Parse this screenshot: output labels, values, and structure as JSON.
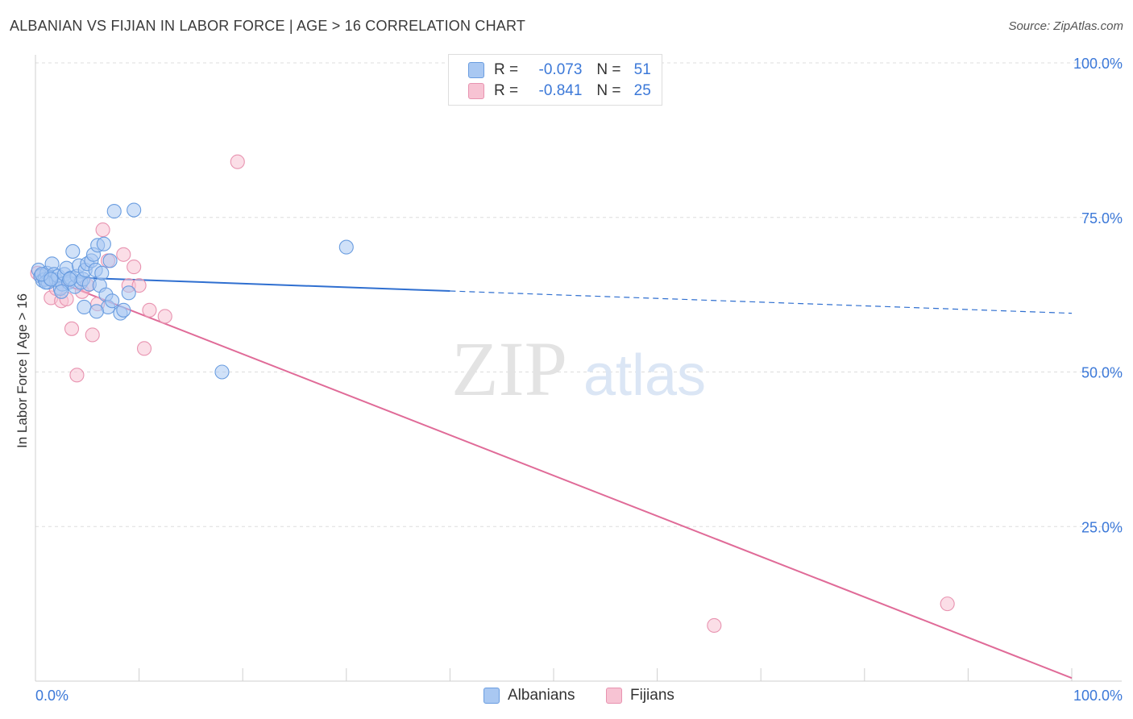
{
  "header": {
    "title": "ALBANIAN VS FIJIAN IN LABOR FORCE | AGE > 16 CORRELATION CHART",
    "source": "Source: ZipAtlas.com"
  },
  "watermark": {
    "zip": "ZIP",
    "atlas": "atlas"
  },
  "legend_top": {
    "rows": [
      {
        "r_label": "R =",
        "r_value": "-0.073",
        "n_label": "N =",
        "n_value": "51"
      },
      {
        "r_label": "R =",
        "r_value": "-0.841",
        "n_label": "N =",
        "n_value": "25"
      }
    ]
  },
  "legend_bottom": {
    "albanians": "Albanians",
    "fijians": "Fijians"
  },
  "colors": {
    "albanian_fill": "#a9c8f2",
    "albanian_stroke": "#6a9de0",
    "albanian_line": "#2f6fd0",
    "fijian_fill": "#f7c3d3",
    "fijian_stroke": "#e893b0",
    "fijian_line": "#e06b98",
    "grid": "#dddddd",
    "axis_label": "#3b78d8"
  },
  "chart_data": {
    "type": "scatter",
    "title": "ALBANIAN VS FIJIAN IN LABOR FORCE | AGE > 16 CORRELATION CHART",
    "xlabel": "",
    "ylabel": "In Labor Force | Age > 16",
    "xlim": [
      0,
      100
    ],
    "ylim": [
      0,
      100
    ],
    "x_ticks": [
      "0.0%",
      "100.0%"
    ],
    "y_ticks": [
      "100.0%",
      "75.0%",
      "50.0%",
      "25.0%"
    ],
    "y_tick_values": [
      100,
      75,
      50,
      25
    ],
    "grid": true,
    "legend_placement": "top-center",
    "series": [
      {
        "name": "Albanians",
        "r": -0.073,
        "n": 51,
        "points": [
          [
            0.3,
            66.5
          ],
          [
            0.5,
            65.5
          ],
          [
            0.7,
            64.8
          ],
          [
            0.9,
            65.0
          ],
          [
            1.1,
            66.0
          ],
          [
            1.2,
            64.5
          ],
          [
            1.4,
            65.2
          ],
          [
            1.6,
            67.5
          ],
          [
            1.8,
            65.8
          ],
          [
            2.0,
            64.9
          ],
          [
            2.2,
            65.5
          ],
          [
            2.4,
            63.5
          ],
          [
            2.6,
            64.2
          ],
          [
            2.8,
            65.8
          ],
          [
            3.0,
            66.8
          ],
          [
            3.2,
            64.5
          ],
          [
            3.4,
            65.2
          ],
          [
            3.6,
            69.5
          ],
          [
            3.8,
            63.8
          ],
          [
            4.0,
            65.5
          ],
          [
            4.2,
            67.2
          ],
          [
            4.4,
            64.5
          ],
          [
            4.6,
            65.0
          ],
          [
            4.8,
            66.5
          ],
          [
            5.0,
            67.5
          ],
          [
            5.2,
            64.2
          ],
          [
            5.4,
            68.0
          ],
          [
            5.6,
            69.0
          ],
          [
            5.8,
            66.5
          ],
          [
            6.0,
            70.5
          ],
          [
            6.2,
            64.0
          ],
          [
            6.4,
            66.0
          ],
          [
            6.6,
            70.7
          ],
          [
            6.8,
            62.5
          ],
          [
            7.0,
            60.5
          ],
          [
            7.2,
            68.0
          ],
          [
            7.4,
            61.5
          ],
          [
            7.6,
            76.0
          ],
          [
            8.2,
            59.5
          ],
          [
            8.5,
            60.0
          ],
          [
            9.0,
            62.8
          ],
          [
            9.5,
            76.2
          ],
          [
            4.7,
            60.5
          ],
          [
            5.9,
            59.8
          ],
          [
            3.3,
            65.0
          ],
          [
            2.5,
            63.0
          ],
          [
            1.0,
            64.5
          ],
          [
            0.6,
            65.8
          ],
          [
            30.0,
            70.2
          ],
          [
            18.0,
            50.0
          ],
          [
            1.5,
            65.0
          ]
        ],
        "trend": {
          "x_start": 0,
          "y_start": 65.5,
          "x_solid_end": 40,
          "y_solid_end": 63.1,
          "x_end": 100,
          "y_end": 59.5
        }
      },
      {
        "name": "Fijians",
        "r": -0.841,
        "n": 25,
        "points": [
          [
            0.2,
            66.0
          ],
          [
            0.5,
            65.5
          ],
          [
            1.0,
            65.0
          ],
          [
            1.5,
            62.0
          ],
          [
            2.0,
            63.5
          ],
          [
            2.5,
            61.5
          ],
          [
            3.0,
            61.8
          ],
          [
            3.5,
            57.0
          ],
          [
            4.0,
            49.5
          ],
          [
            4.5,
            63.0
          ],
          [
            5.0,
            64.0
          ],
          [
            5.5,
            56.0
          ],
          [
            6.0,
            61.0
          ],
          [
            6.5,
            73.0
          ],
          [
            7.0,
            68.0
          ],
          [
            8.5,
            69.0
          ],
          [
            9.0,
            64.0
          ],
          [
            9.5,
            67.0
          ],
          [
            10.0,
            64.0
          ],
          [
            10.5,
            53.8
          ],
          [
            11.0,
            60.0
          ],
          [
            12.5,
            59.0
          ],
          [
            19.5,
            84.0
          ],
          [
            65.5,
            9.0
          ],
          [
            88.0,
            12.5
          ]
        ],
        "trend": {
          "x_start": 0,
          "y_start": 66.0,
          "x_end": 100,
          "y_end": 0.5
        }
      }
    ]
  }
}
